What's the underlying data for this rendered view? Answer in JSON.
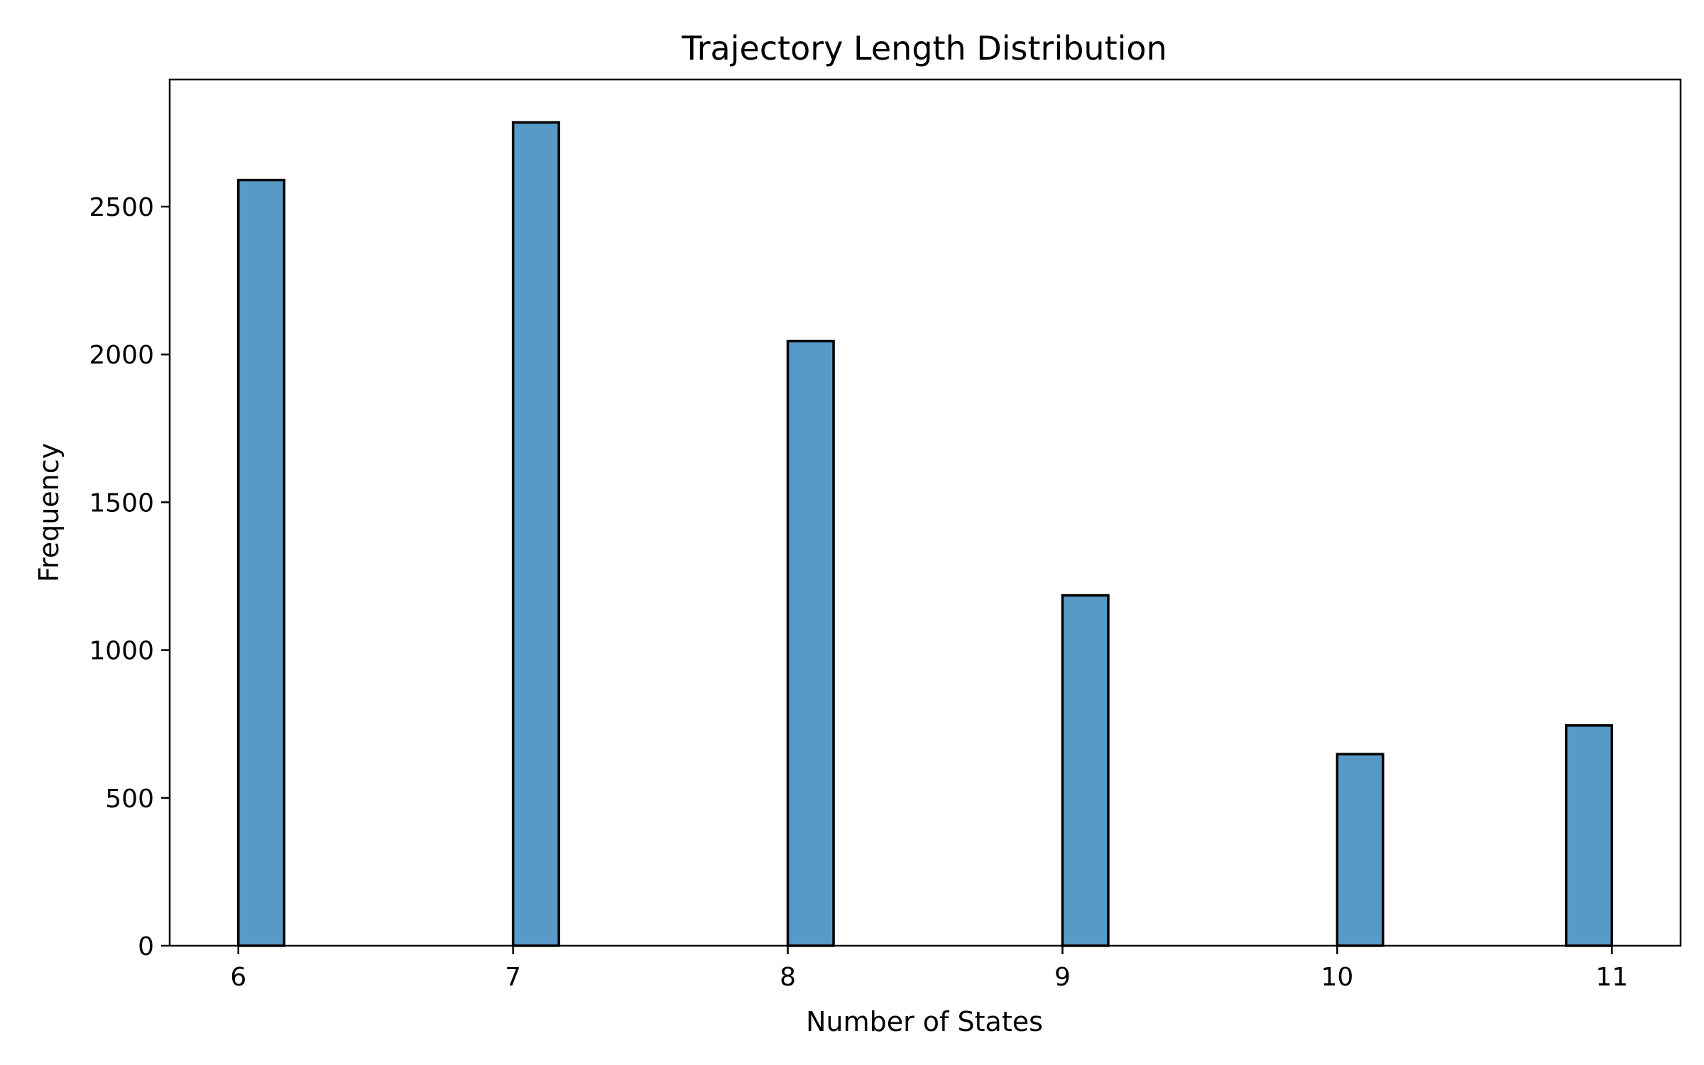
{
  "chart_data": {
    "type": "bar",
    "title": "Trajectory Length Distribution",
    "xlabel": "Number of States",
    "ylabel": "Frequency",
    "xlim": [
      5.75,
      11.25
    ],
    "ylim": [
      0,
      2930
    ],
    "x_ticks": [
      6,
      7,
      8,
      9,
      10,
      11
    ],
    "y_ticks": [
      0,
      500,
      1000,
      1500,
      2000,
      2500
    ],
    "grid": false,
    "bar_color": "#5799c7",
    "edge_color": "#000000",
    "bins": [
      {
        "x_start": 6.0,
        "x_end": 6.1667,
        "value": 2590
      },
      {
        "x_start": 7.0,
        "x_end": 7.1667,
        "value": 2785
      },
      {
        "x_start": 8.0,
        "x_end": 8.1667,
        "value": 2045
      },
      {
        "x_start": 9.0,
        "x_end": 9.1667,
        "value": 1185
      },
      {
        "x_start": 10.0,
        "x_end": 10.1667,
        "value": 648
      },
      {
        "x_start": 10.8333,
        "x_end": 11.0,
        "value": 745
      }
    ]
  }
}
